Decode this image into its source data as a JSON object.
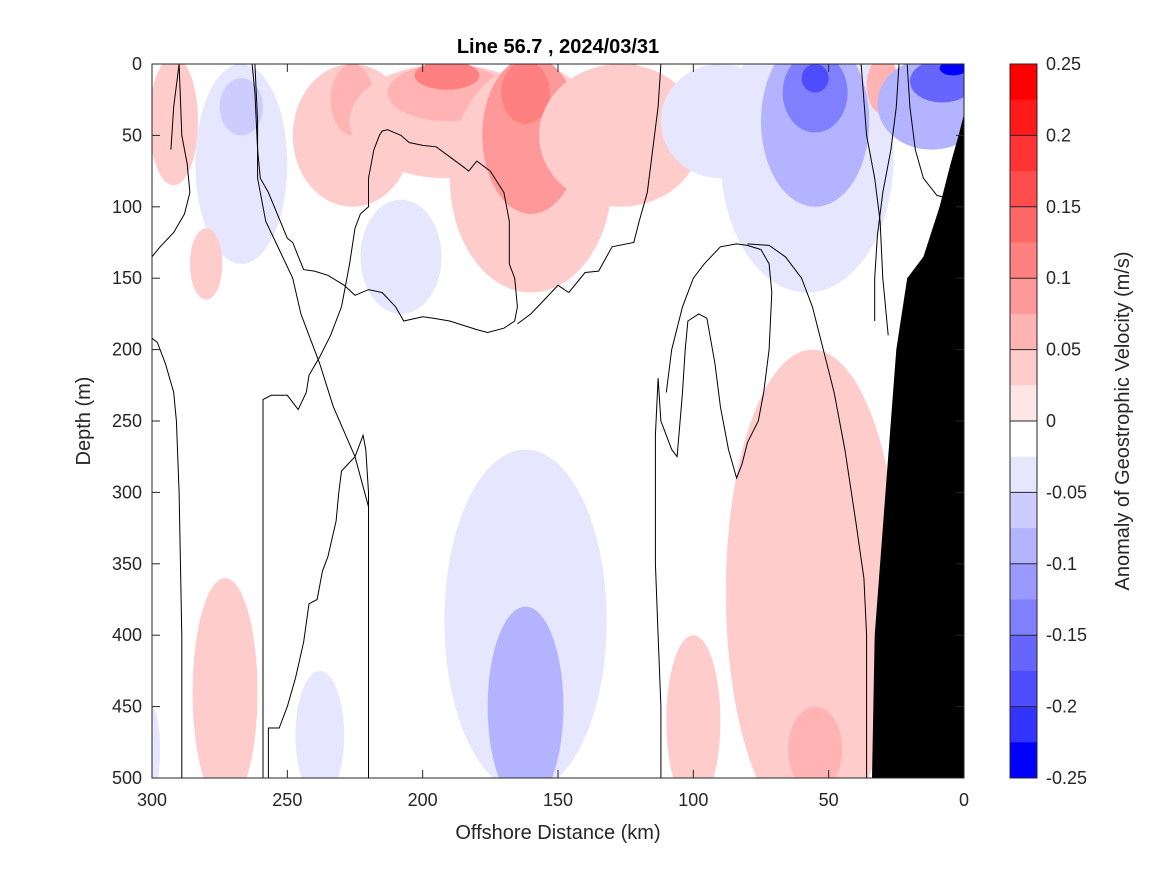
{
  "chart_data": {
    "type": "heatmap",
    "title": "Line 56.7 , 2024/03/31",
    "xlabel": "Offshore Distance (km)",
    "ylabel": "Depth (m)",
    "colorbar_label": "Anomaly of Geostrophic Velocity (m/s)",
    "xlim": [
      300,
      0
    ],
    "ylim": [
      0,
      500
    ],
    "x_reversed": true,
    "y_reversed": true,
    "xticks": [
      300,
      250,
      200,
      150,
      100,
      50,
      0
    ],
    "yticks": [
      0,
      50,
      100,
      150,
      200,
      250,
      300,
      350,
      400,
      450,
      500
    ],
    "colorbar_ticks": [
      {
        "value": 0.25,
        "label": "0.25"
      },
      {
        "value": 0.2,
        "label": "0.2"
      },
      {
        "value": 0.15,
        "label": "0.15"
      },
      {
        "value": 0.1,
        "label": "0.1"
      },
      {
        "value": 0.05,
        "label": "0.05"
      },
      {
        "value": 0,
        "label": "0"
      },
      {
        "value": -0.05,
        "label": "-0.05"
      },
      {
        "value": -0.1,
        "label": "-0.1"
      },
      {
        "value": -0.15,
        "label": "-0.15"
      },
      {
        "value": -0.2,
        "label": "-0.2"
      },
      {
        "value": -0.25,
        "label": "-0.25"
      }
    ],
    "colorbar_levels": [
      {
        "min": 0.225,
        "max": 0.25,
        "color": "#ff0000"
      },
      {
        "min": 0.2,
        "max": 0.225,
        "color": "#ff1a1a"
      },
      {
        "min": 0.175,
        "max": 0.2,
        "color": "#ff3333"
      },
      {
        "min": 0.15,
        "max": 0.175,
        "color": "#ff4d4d"
      },
      {
        "min": 0.125,
        "max": 0.15,
        "color": "#ff6666"
      },
      {
        "min": 0.1,
        "max": 0.125,
        "color": "#ff8080"
      },
      {
        "min": 0.075,
        "max": 0.1,
        "color": "#ff9999"
      },
      {
        "min": 0.05,
        "max": 0.075,
        "color": "#ffb3b3"
      },
      {
        "min": 0.025,
        "max": 0.05,
        "color": "#ffcccc"
      },
      {
        "min": 0.0,
        "max": 0.025,
        "color": "#ffe6e6"
      },
      {
        "min": -0.025,
        "max": 0.0,
        "color": "#ffffff"
      },
      {
        "min": -0.05,
        "max": -0.025,
        "color": "#e6e6ff"
      },
      {
        "min": -0.075,
        "max": -0.05,
        "color": "#ccccff"
      },
      {
        "min": -0.1,
        "max": -0.075,
        "color": "#b3b3ff"
      },
      {
        "min": -0.125,
        "max": -0.1,
        "color": "#9999ff"
      },
      {
        "min": -0.15,
        "max": -0.125,
        "color": "#8080ff"
      },
      {
        "min": -0.175,
        "max": -0.15,
        "color": "#6666ff"
      },
      {
        "min": -0.2,
        "max": -0.175,
        "color": "#4d4dff"
      },
      {
        "min": -0.225,
        "max": -0.2,
        "color": "#3333ff"
      },
      {
        "min": -0.25,
        "max": -0.225,
        "color": "#0000ff"
      }
    ],
    "anomaly_features": [
      {
        "x": 292,
        "y": 40,
        "rx": 9,
        "ry": 45,
        "value": 0.03
      },
      {
        "x": 267,
        "y": 70,
        "rx": 17,
        "ry": 70,
        "value": -0.04
      },
      {
        "x": 267,
        "y": 30,
        "rx": 8,
        "ry": 20,
        "value": -0.06
      },
      {
        "x": 280,
        "y": 140,
        "rx": 6,
        "ry": 25,
        "value": 0.03
      },
      {
        "x": 226,
        "y": 50,
        "rx": 22,
        "ry": 50,
        "value": 0.03
      },
      {
        "x": 226,
        "y": 25,
        "rx": 8,
        "ry": 25,
        "value": 0.05
      },
      {
        "x": 191,
        "y": 40,
        "rx": 36,
        "ry": 40,
        "value": 0.04
      },
      {
        "x": 191,
        "y": 20,
        "rx": 22,
        "ry": 20,
        "value": 0.07
      },
      {
        "x": 191,
        "y": 8,
        "rx": 12,
        "ry": 10,
        "value": 0.1
      },
      {
        "x": 160,
        "y": 80,
        "rx": 30,
        "ry": 80,
        "value": 0.04
      },
      {
        "x": 160,
        "y": 50,
        "rx": 18,
        "ry": 55,
        "value": 0.08
      },
      {
        "x": 162,
        "y": 20,
        "rx": 9,
        "ry": 22,
        "value": 0.12
      },
      {
        "x": 122,
        "y": 20,
        "rx": 4,
        "ry": 20,
        "value": 0.05
      },
      {
        "x": 127,
        "y": 50,
        "rx": 30,
        "ry": 50,
        "value": 0.03
      },
      {
        "x": 208,
        "y": 135,
        "rx": 15,
        "ry": 40,
        "value": -0.03
      },
      {
        "x": 90,
        "y": 40,
        "rx": 22,
        "ry": 40,
        "value": -0.04
      },
      {
        "x": 58,
        "y": 65,
        "rx": 32,
        "ry": 95,
        "value": -0.04
      },
      {
        "x": 55,
        "y": 40,
        "rx": 20,
        "ry": 60,
        "value": -0.08
      },
      {
        "x": 55,
        "y": 20,
        "rx": 12,
        "ry": 28,
        "value": -0.14
      },
      {
        "x": 55,
        "y": 10,
        "rx": 5,
        "ry": 10,
        "value": -0.18
      },
      {
        "x": 30,
        "y": 15,
        "rx": 6,
        "ry": 20,
        "value": 0.05
      },
      {
        "x": 12,
        "y": 28,
        "rx": 20,
        "ry": 32,
        "value": -0.1
      },
      {
        "x": 8,
        "y": 12,
        "rx": 12,
        "ry": 15,
        "value": -0.17
      },
      {
        "x": 4,
        "y": 3,
        "rx": 5,
        "ry": 5,
        "value": -0.23
      },
      {
        "x": 162,
        "y": 390,
        "rx": 30,
        "ry": 120,
        "value": -0.04
      },
      {
        "x": 162,
        "y": 450,
        "rx": 14,
        "ry": 70,
        "value": -0.08
      },
      {
        "x": 238,
        "y": 470,
        "rx": 9,
        "ry": 45,
        "value": -0.03
      },
      {
        "x": 273,
        "y": 440,
        "rx": 12,
        "ry": 80,
        "value": 0.03
      },
      {
        "x": 56,
        "y": 370,
        "rx": 32,
        "ry": 170,
        "value": 0.03
      },
      {
        "x": 55,
        "y": 480,
        "rx": 10,
        "ry": 30,
        "value": 0.05
      },
      {
        "x": 100,
        "y": 460,
        "rx": 10,
        "ry": 60,
        "value": 0.03
      },
      {
        "x": 300,
        "y": 480,
        "rx": 3,
        "ry": 30,
        "value": -0.03
      }
    ],
    "zero_contours": [
      [
        [
          300,
          135
        ],
        [
          297,
          128
        ],
        [
          292,
          118
        ],
        [
          288,
          105
        ],
        [
          286,
          90
        ],
        [
          287,
          70
        ],
        [
          289,
          50
        ],
        [
          290,
          0
        ]
      ],
      [
        [
          300,
          290
        ],
        [
          300,
          290
        ]
      ],
      [
        [
          289,
          500
        ],
        [
          289,
          400
        ],
        [
          290,
          300
        ],
        [
          291,
          250
        ],
        [
          292,
          230
        ],
        [
          295,
          210
        ],
        [
          298,
          195
        ],
        [
          300,
          192
        ]
      ],
      [
        [
          290,
          0
        ],
        [
          292,
          30
        ],
        [
          293,
          60
        ]
      ],
      [
        [
          262,
          0
        ],
        [
          261,
          40
        ],
        [
          261,
          80
        ],
        [
          258,
          110
        ],
        [
          253,
          130
        ],
        [
          248,
          150
        ],
        [
          245,
          175
        ],
        [
          242,
          190
        ],
        [
          238,
          210
        ],
        [
          233,
          240
        ],
        [
          225,
          275
        ],
        [
          220,
          310
        ]
      ],
      [
        [
          259,
          500
        ],
        [
          259,
          400
        ],
        [
          259,
          300
        ],
        [
          259,
          250
        ],
        [
          259,
          235
        ],
        [
          256,
          232
        ],
        [
          250,
          232
        ],
        [
          246,
          242
        ],
        [
          243,
          230
        ],
        [
          242,
          218
        ],
        [
          238,
          205
        ],
        [
          234,
          190
        ],
        [
          230,
          170
        ],
        [
          227,
          140
        ],
        [
          225,
          115
        ],
        [
          223,
          105
        ],
        [
          220,
          100
        ],
        [
          220,
          80
        ],
        [
          218,
          60
        ],
        [
          216,
          50
        ],
        [
          215,
          47
        ],
        [
          213,
          46
        ],
        [
          208,
          50
        ],
        [
          205,
          55
        ],
        [
          200,
          57
        ],
        [
          195,
          58
        ],
        [
          190,
          65
        ],
        [
          185,
          72
        ],
        [
          183,
          75
        ],
        [
          180,
          68
        ],
        [
          175,
          75
        ],
        [
          170,
          90
        ],
        [
          168,
          110
        ],
        [
          168,
          140
        ],
        [
          166,
          150
        ],
        [
          165,
          170
        ],
        [
          166,
          180
        ],
        [
          170,
          185
        ],
        [
          176,
          188
        ],
        [
          180,
          186
        ],
        [
          190,
          180
        ],
        [
          196,
          178
        ],
        [
          200,
          177
        ],
        [
          207,
          180
        ],
        [
          210,
          170
        ],
        [
          215,
          160
        ],
        [
          220,
          158
        ],
        [
          225,
          162
        ],
        [
          229,
          155
        ],
        [
          235,
          148
        ],
        [
          240,
          145
        ],
        [
          244,
          144
        ],
        [
          248,
          125
        ],
        [
          250,
          122
        ],
        [
          257,
          90
        ],
        [
          260,
          80
        ],
        [
          261,
          60
        ],
        [
          262,
          20
        ],
        [
          263,
          0
        ]
      ],
      [
        [
          220,
          500
        ],
        [
          220,
          420
        ],
        [
          220,
          350
        ],
        [
          220,
          300
        ],
        [
          221,
          270
        ],
        [
          222,
          260
        ],
        [
          225,
          275
        ],
        [
          230,
          285
        ],
        [
          231,
          300
        ],
        [
          232,
          320
        ],
        [
          235,
          345
        ],
        [
          237,
          355
        ],
        [
          239,
          375
        ],
        [
          242,
          378
        ],
        [
          244,
          405
        ],
        [
          247,
          430
        ],
        [
          250,
          450
        ],
        [
          253,
          465
        ],
        [
          257,
          465
        ],
        [
          257,
          500
        ]
      ],
      [
        [
          112,
          500
        ],
        [
          112,
          450
        ],
        [
          113,
          400
        ],
        [
          114,
          350
        ],
        [
          114,
          300
        ],
        [
          114,
          260
        ],
        [
          113,
          220
        ],
        [
          112,
          250
        ],
        [
          108,
          270
        ],
        [
          106,
          275
        ],
        [
          104,
          230
        ],
        [
          103,
          200
        ],
        [
          102,
          180
        ],
        [
          98,
          175
        ],
        [
          95,
          178
        ],
        [
          92,
          210
        ],
        [
          90,
          240
        ],
        [
          87,
          270
        ],
        [
          84,
          290
        ],
        [
          82,
          280
        ],
        [
          80,
          265
        ],
        [
          76,
          250
        ],
        [
          74,
          230
        ],
        [
          72,
          200
        ],
        [
          71,
          160
        ],
        [
          72,
          140
        ],
        [
          75,
          130
        ],
        [
          80,
          127
        ],
        [
          84,
          126
        ],
        [
          90,
          128
        ],
        [
          96,
          140
        ],
        [
          100,
          150
        ],
        [
          104,
          170
        ],
        [
          108,
          200
        ],
        [
          110,
          230
        ]
      ],
      [
        [
          112,
          0
        ],
        [
          113,
          30
        ],
        [
          115,
          60
        ],
        [
          117,
          90
        ],
        [
          120,
          110
        ],
        [
          122,
          125
        ],
        [
          130,
          128
        ],
        [
          135,
          145
        ],
        [
          140,
          146
        ],
        [
          146,
          160
        ],
        [
          150,
          155
        ],
        [
          155,
          165
        ],
        [
          160,
          175
        ],
        [
          165,
          182
        ]
      ],
      [
        [
          36,
          500
        ],
        [
          36,
          400
        ],
        [
          37,
          360
        ],
        [
          40,
          320
        ],
        [
          44,
          270
        ],
        [
          48,
          230
        ],
        [
          52,
          200
        ],
        [
          56,
          170
        ],
        [
          60,
          150
        ],
        [
          66,
          135
        ],
        [
          72,
          127
        ],
        [
          80,
          126
        ]
      ],
      [
        [
          24,
          0
        ],
        [
          25,
          30
        ],
        [
          27,
          60
        ],
        [
          30,
          90
        ],
        [
          32,
          120
        ],
        [
          33,
          150
        ],
        [
          33,
          180
        ]
      ],
      [
        [
          21,
          0
        ],
        [
          20,
          30
        ],
        [
          18,
          60
        ],
        [
          15,
          80
        ],
        [
          10,
          92
        ],
        [
          6,
          94
        ]
      ],
      [
        [
          38,
          0
        ],
        [
          36,
          50
        ],
        [
          33,
          80
        ],
        [
          31,
          110
        ],
        [
          30,
          150
        ],
        [
          28,
          190
        ]
      ]
    ],
    "bathymetry": [
      [
        34,
        500
      ],
      [
        33,
        400
      ],
      [
        31,
        350
      ],
      [
        29,
        300
      ],
      [
        27,
        250
      ],
      [
        25,
        200
      ],
      [
        21,
        150
      ],
      [
        15,
        135
      ],
      [
        9,
        100
      ],
      [
        5,
        70
      ],
      [
        2,
        50
      ],
      [
        0,
        35
      ],
      [
        0,
        500
      ]
    ]
  },
  "colors": {
    "land": "#000000",
    "axis": "#262626",
    "contour": "#000000"
  }
}
